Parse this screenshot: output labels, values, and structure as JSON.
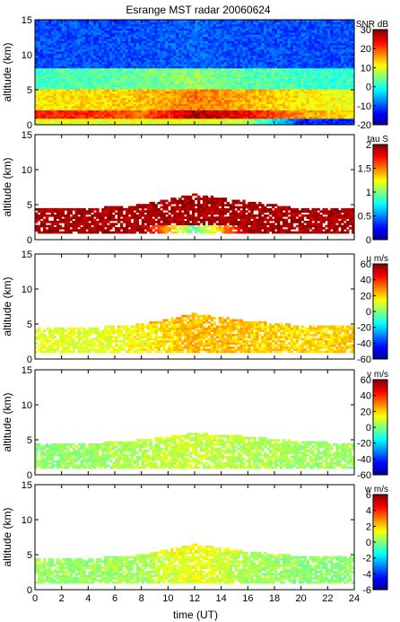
{
  "chart_data": {
    "type": "heatmap",
    "title": "Esrange MST radar 20060624",
    "xlabel": "time (UT)",
    "xlim": [
      0,
      24
    ],
    "x_ticks": [
      "0",
      "2",
      "4",
      "6",
      "8",
      "10",
      "12",
      "14",
      "16",
      "18",
      "20",
      "22",
      "24"
    ],
    "grid": false,
    "legend": "colorbar right of each panel",
    "colormap": [
      "#00008f",
      "#0000ff",
      "#0080ff",
      "#00ffff",
      "#80ff80",
      "#ffff00",
      "#ff8000",
      "#ff0000",
      "#800000"
    ],
    "panels": [
      {
        "ylabel": "altitude (km)",
        "ylim": [
          0,
          15
        ],
        "y_ticks": [
          "0",
          "5",
          "10",
          "15"
        ],
        "quantity": "SNR",
        "unit": "dB",
        "clim": [
          -20,
          30
        ],
        "cbar_ticks": [
          "30",
          "20",
          "10",
          "0",
          "-10",
          "-20"
        ],
        "fill": "full",
        "field": [
          {
            "t": 0,
            "layers": [
              [
                0,
                1,
                10
              ],
              [
                1,
                2,
                23
              ],
              [
                2,
                5,
                12
              ],
              [
                5,
                8,
                2
              ],
              [
                8,
                15,
                -10
              ]
            ]
          },
          {
            "t": 4,
            "layers": [
              [
                0,
                1,
                10
              ],
              [
                1,
                2,
                22
              ],
              [
                2,
                5,
                13
              ],
              [
                5,
                8,
                3
              ],
              [
                8,
                15,
                -10
              ]
            ]
          },
          {
            "t": 8,
            "layers": [
              [
                0,
                1,
                10
              ],
              [
                1,
                2,
                18
              ],
              [
                2,
                5,
                14
              ],
              [
                5,
                8,
                4
              ],
              [
                8,
                15,
                -10
              ]
            ]
          },
          {
            "t": 12,
            "layers": [
              [
                0,
                1,
                10
              ],
              [
                1,
                2,
                28
              ],
              [
                2,
                5,
                18
              ],
              [
                5,
                8,
                6
              ],
              [
                8,
                15,
                -9
              ]
            ]
          },
          {
            "t": 16,
            "layers": [
              [
                0,
                1,
                8
              ],
              [
                1,
                2,
                24
              ],
              [
                2,
                5,
                15
              ],
              [
                5,
                8,
                3
              ],
              [
                8,
                15,
                -10
              ]
            ]
          },
          {
            "t": 20,
            "layers": [
              [
                0,
                1,
                -12
              ],
              [
                1,
                2,
                16
              ],
              [
                2,
                5,
                12
              ],
              [
                5,
                8,
                2
              ],
              [
                8,
                15,
                -10
              ]
            ]
          },
          {
            "t": 24,
            "layers": [
              [
                0,
                1,
                -12
              ],
              [
                1,
                2,
                12
              ],
              [
                2,
                5,
                10
              ],
              [
                5,
                8,
                1
              ],
              [
                8,
                15,
                -10
              ]
            ]
          }
        ]
      },
      {
        "ylabel": "altitude (km)",
        "ylim": [
          0,
          15
        ],
        "y_ticks": [
          "0",
          "5",
          "10",
          "15"
        ],
        "quantity": "tau",
        "unit": "S",
        "clim": [
          0,
          2
        ],
        "cbar_ticks": [
          "2",
          "1.5",
          "1",
          "0.5",
          "0"
        ],
        "fill": "echo",
        "field": [
          {
            "t": 0,
            "top": 4.5,
            "layers": [
              [
                0.8,
                4.5,
                1.9
              ]
            ]
          },
          {
            "t": 4,
            "top": 4.5,
            "layers": [
              [
                0.8,
                4.5,
                1.9
              ]
            ]
          },
          {
            "t": 8,
            "top": 5.0,
            "layers": [
              [
                0.8,
                5.0,
                1.9
              ]
            ]
          },
          {
            "t": 12,
            "top": 6.5,
            "layers": [
              [
                0.8,
                2.0,
                0.9
              ],
              [
                2.0,
                6.5,
                1.9
              ]
            ]
          },
          {
            "t": 16,
            "top": 5.5,
            "layers": [
              [
                0.8,
                5.5,
                1.9
              ]
            ]
          },
          {
            "t": 20,
            "top": 4.5,
            "layers": [
              [
                0.8,
                4.5,
                1.9
              ]
            ]
          },
          {
            "t": 24,
            "top": 4.5,
            "layers": [
              [
                0.8,
                4.5,
                1.9
              ]
            ]
          }
        ]
      },
      {
        "ylabel": "altitude (km)",
        "ylim": [
          0,
          15
        ],
        "y_ticks": [
          "0",
          "5",
          "10",
          "15"
        ],
        "quantity": "u",
        "unit": "m/s",
        "clim": [
          -60,
          60
        ],
        "cbar_ticks": [
          "60",
          "40",
          "20",
          "0",
          "-20",
          "-40",
          "-60"
        ],
        "fill": "echo",
        "field": [
          {
            "t": 0,
            "top": 4.5,
            "layers": [
              [
                0.8,
                4.5,
                10
              ]
            ]
          },
          {
            "t": 4,
            "top": 4.5,
            "layers": [
              [
                0.8,
                4.5,
                10
              ]
            ]
          },
          {
            "t": 8,
            "top": 5.0,
            "layers": [
              [
                0.8,
                5.0,
                14
              ]
            ]
          },
          {
            "t": 12,
            "top": 6.5,
            "layers": [
              [
                0.8,
                6.5,
                22
              ]
            ]
          },
          {
            "t": 16,
            "top": 5.5,
            "layers": [
              [
                0.8,
                5.5,
                20
              ]
            ]
          },
          {
            "t": 20,
            "top": 4.8,
            "layers": [
              [
                0.8,
                4.8,
                18
              ]
            ]
          },
          {
            "t": 24,
            "top": 4.8,
            "layers": [
              [
                0.8,
                4.8,
                20
              ]
            ]
          }
        ]
      },
      {
        "ylabel": "altitude (km)",
        "ylim": [
          0,
          15
        ],
        "y_ticks": [
          "0",
          "5",
          "10",
          "15"
        ],
        "quantity": "v",
        "unit": "m/s",
        "clim": [
          -60,
          60
        ],
        "cbar_ticks": [
          "60",
          "40",
          "20",
          "0",
          "-20",
          "-40",
          "-60"
        ],
        "fill": "echo",
        "field": [
          {
            "t": 0,
            "top": 4.5,
            "layers": [
              [
                0.8,
                4.5,
                0
              ]
            ]
          },
          {
            "t": 4,
            "top": 4.5,
            "layers": [
              [
                0.8,
                4.5,
                2
              ]
            ]
          },
          {
            "t": 8,
            "top": 5.0,
            "layers": [
              [
                0.8,
                5.0,
                5
              ]
            ]
          },
          {
            "t": 12,
            "top": 6.0,
            "layers": [
              [
                0.8,
                6.0,
                8
              ]
            ]
          },
          {
            "t": 16,
            "top": 5.5,
            "layers": [
              [
                0.8,
                5.5,
                5
              ]
            ]
          },
          {
            "t": 20,
            "top": 4.8,
            "layers": [
              [
                0.8,
                4.8,
                3
              ]
            ]
          },
          {
            "t": 24,
            "top": 4.5,
            "layers": [
              [
                0.8,
                4.5,
                2
              ]
            ]
          }
        ]
      },
      {
        "ylabel": "altitude (km)",
        "ylim": [
          0,
          15
        ],
        "y_ticks": [
          "0",
          "5",
          "10",
          "15"
        ],
        "quantity": "w",
        "unit": "m/s",
        "clim": [
          -6,
          6
        ],
        "cbar_ticks": [
          "6",
          "4",
          "2",
          "0",
          "-2",
          "-4",
          "-6"
        ],
        "fill": "echo",
        "field": [
          {
            "t": 0,
            "top": 4.5,
            "layers": [
              [
                0.8,
                4.5,
                0.2
              ]
            ]
          },
          {
            "t": 4,
            "top": 4.5,
            "layers": [
              [
                0.8,
                4.5,
                0.2
              ]
            ]
          },
          {
            "t": 8,
            "top": 5.0,
            "layers": [
              [
                0.8,
                5.0,
                0.4
              ]
            ]
          },
          {
            "t": 12,
            "top": 6.5,
            "layers": [
              [
                0.8,
                6.5,
                1.2
              ]
            ]
          },
          {
            "t": 16,
            "top": 5.5,
            "layers": [
              [
                0.8,
                5.5,
                0.4
              ]
            ]
          },
          {
            "t": 20,
            "top": 4.8,
            "layers": [
              [
                0.8,
                4.8,
                0.0
              ]
            ]
          },
          {
            "t": 24,
            "top": 4.8,
            "layers": [
              [
                0.8,
                4.8,
                0.0
              ]
            ]
          }
        ]
      }
    ]
  }
}
